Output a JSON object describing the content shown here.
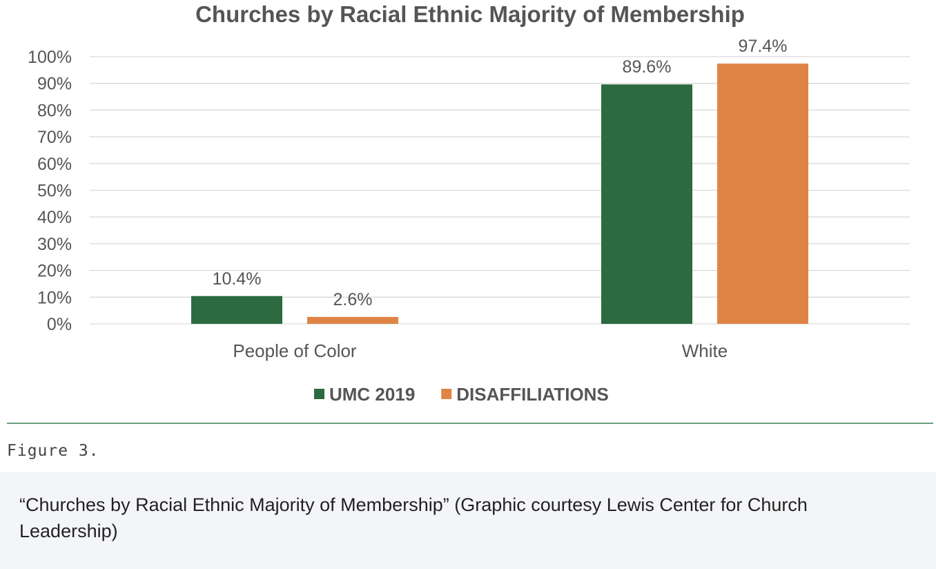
{
  "chart_data": {
    "type": "bar",
    "title": "Churches by Racial Ethnic Majority of Membership",
    "categories": [
      "People of Color",
      "White"
    ],
    "series": [
      {
        "name": "UMC 2019",
        "values": [
          10.4,
          89.6
        ],
        "labels": [
          "10.4%",
          "89.6%"
        ],
        "color": "#2c6a3f"
      },
      {
        "name": "DISAFFILIATIONS",
        "values": [
          2.6,
          97.4
        ],
        "labels": [
          "2.6%",
          "97.4%"
        ],
        "color": "#de8546"
      }
    ],
    "yticks": [
      "0%",
      "10%",
      "20%",
      "30%",
      "40%",
      "50%",
      "60%",
      "70%",
      "80%",
      "90%",
      "100%"
    ],
    "ylim": [
      0,
      100
    ],
    "grid": true,
    "legend_position": "bottom"
  },
  "figure_label": "Figure 3.",
  "caption": "“Churches by Racial Ethnic Majority of Membership” (Graphic courtesy Lewis Center for Church Leadership)"
}
